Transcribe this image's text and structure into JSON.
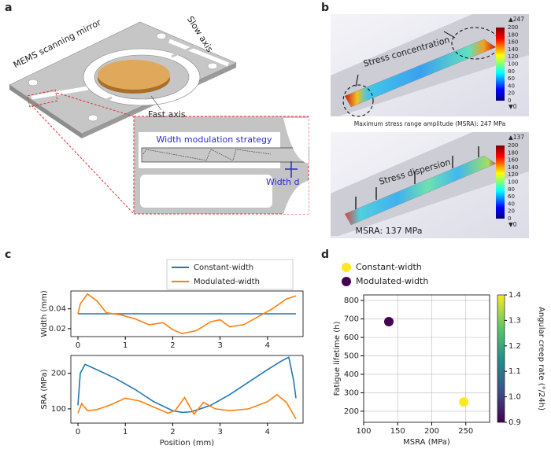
{
  "panel_labels": [
    "a",
    "b",
    "c",
    "d"
  ],
  "panel_a": {
    "device_label": "MEMS scanning mirror",
    "slow_axis": "Slow axis",
    "fast_axis": "Fast axis",
    "strategy": "Width modulation strategy",
    "width": "Width d"
  },
  "panel_b": {
    "top": {
      "max_label": "▲247",
      "min_label": "▼0",
      "annotation": "Stress concentration",
      "caption": "Maximum stress range amplitude (MSRA): 247 MPa",
      "colorbar_ticks": [
        200,
        180,
        160,
        140,
        120,
        100,
        80,
        60,
        40,
        20,
        0
      ]
    },
    "bottom": {
      "max_label": "▲137",
      "min_label": "▼0",
      "annotation": "Stress dispersion",
      "caption": "MSRA: 137 MPa",
      "colorbar_ticks": [
        200,
        180,
        160,
        140,
        120,
        100,
        80,
        60,
        40,
        20,
        0
      ]
    }
  },
  "chart_data": [
    {
      "type": "line",
      "ylabel": "Width (mm)",
      "xlim": [
        -0.15,
        4.75
      ],
      "xticks": [
        0,
        1,
        2,
        3,
        4
      ],
      "ylim": [
        0.012,
        0.058
      ],
      "yticks": [
        0.02,
        0.04
      ],
      "series": [
        {
          "name": "Constant-width",
          "color": "#1f77b4",
          "x": [
            0,
            4.6
          ],
          "values": [
            0.035,
            0.035
          ]
        },
        {
          "name": "Modulated-width",
          "color": "#ff7f0e",
          "x": [
            0,
            0.05,
            0.2,
            0.4,
            0.6,
            0.9,
            1.2,
            1.5,
            1.8,
            2.0,
            2.2,
            2.5,
            2.8,
            3.0,
            3.2,
            3.5,
            3.8,
            4.1,
            4.4,
            4.6
          ],
          "values": [
            0.035,
            0.045,
            0.055,
            0.048,
            0.036,
            0.034,
            0.03,
            0.024,
            0.026,
            0.019,
            0.015,
            0.018,
            0.027,
            0.029,
            0.022,
            0.024,
            0.032,
            0.04,
            0.05,
            0.053
          ]
        }
      ]
    },
    {
      "type": "line",
      "ylabel": "SRA (MPa)",
      "xlabel": "Position (mm)",
      "xlim": [
        -0.15,
        4.75
      ],
      "xticks": [
        0,
        1,
        2,
        3,
        4
      ],
      "ylim": [
        60,
        250
      ],
      "yticks": [
        100,
        200
      ],
      "series": [
        {
          "color": "#1f77b4",
          "x": [
            0,
            0.05,
            0.15,
            0.4,
            0.8,
            1.2,
            1.6,
            2.0,
            2.2,
            2.4,
            2.8,
            3.2,
            3.6,
            4.0,
            4.3,
            4.45,
            4.55,
            4.6
          ],
          "values": [
            110,
            200,
            225,
            210,
            185,
            155,
            120,
            95,
            90,
            92,
            110,
            140,
            175,
            210,
            235,
            245,
            180,
            130
          ]
        },
        {
          "color": "#ff7f0e",
          "x": [
            0,
            0.08,
            0.2,
            0.4,
            0.7,
            1.0,
            1.3,
            1.6,
            1.9,
            2.05,
            2.25,
            2.45,
            2.65,
            2.9,
            3.2,
            3.6,
            4.0,
            4.2,
            4.4,
            4.6
          ],
          "values": [
            88,
            115,
            95,
            98,
            112,
            130,
            122,
            105,
            88,
            95,
            132,
            85,
            118,
            100,
            95,
            100,
            120,
            140,
            118,
            72
          ]
        }
      ]
    },
    {
      "type": "scatter",
      "xlabel": "MSRA (MPa)",
      "ylabel": "Fatigue lifetime (h)",
      "xlim": [
        100,
        285
      ],
      "xticks": [
        100,
        150,
        200,
        250
      ],
      "ylim": [
        140,
        830
      ],
      "yticks": [
        200,
        300,
        400,
        500,
        600,
        700,
        800
      ],
      "grid": true,
      "series": [
        {
          "name": "Constant-width",
          "color": "#fde725",
          "x": [
            247
          ],
          "values": [
            250
          ]
        },
        {
          "name": "Modulated-width",
          "color": "#440154",
          "x": [
            137
          ],
          "values": [
            685
          ]
        }
      ],
      "colorbar": {
        "label": "Angular creep rate (°/24h)",
        "lim": [
          0.9,
          1.4
        ],
        "ticks": [
          0.9,
          {
            "value": 1.0,
            "label": "1.0"
          },
          1.1,
          1.2,
          1.3,
          1.4
        ],
        "colors": [
          "#440154",
          "#3b528b",
          "#21918c",
          "#5ec962",
          "#fde725"
        ]
      }
    }
  ]
}
